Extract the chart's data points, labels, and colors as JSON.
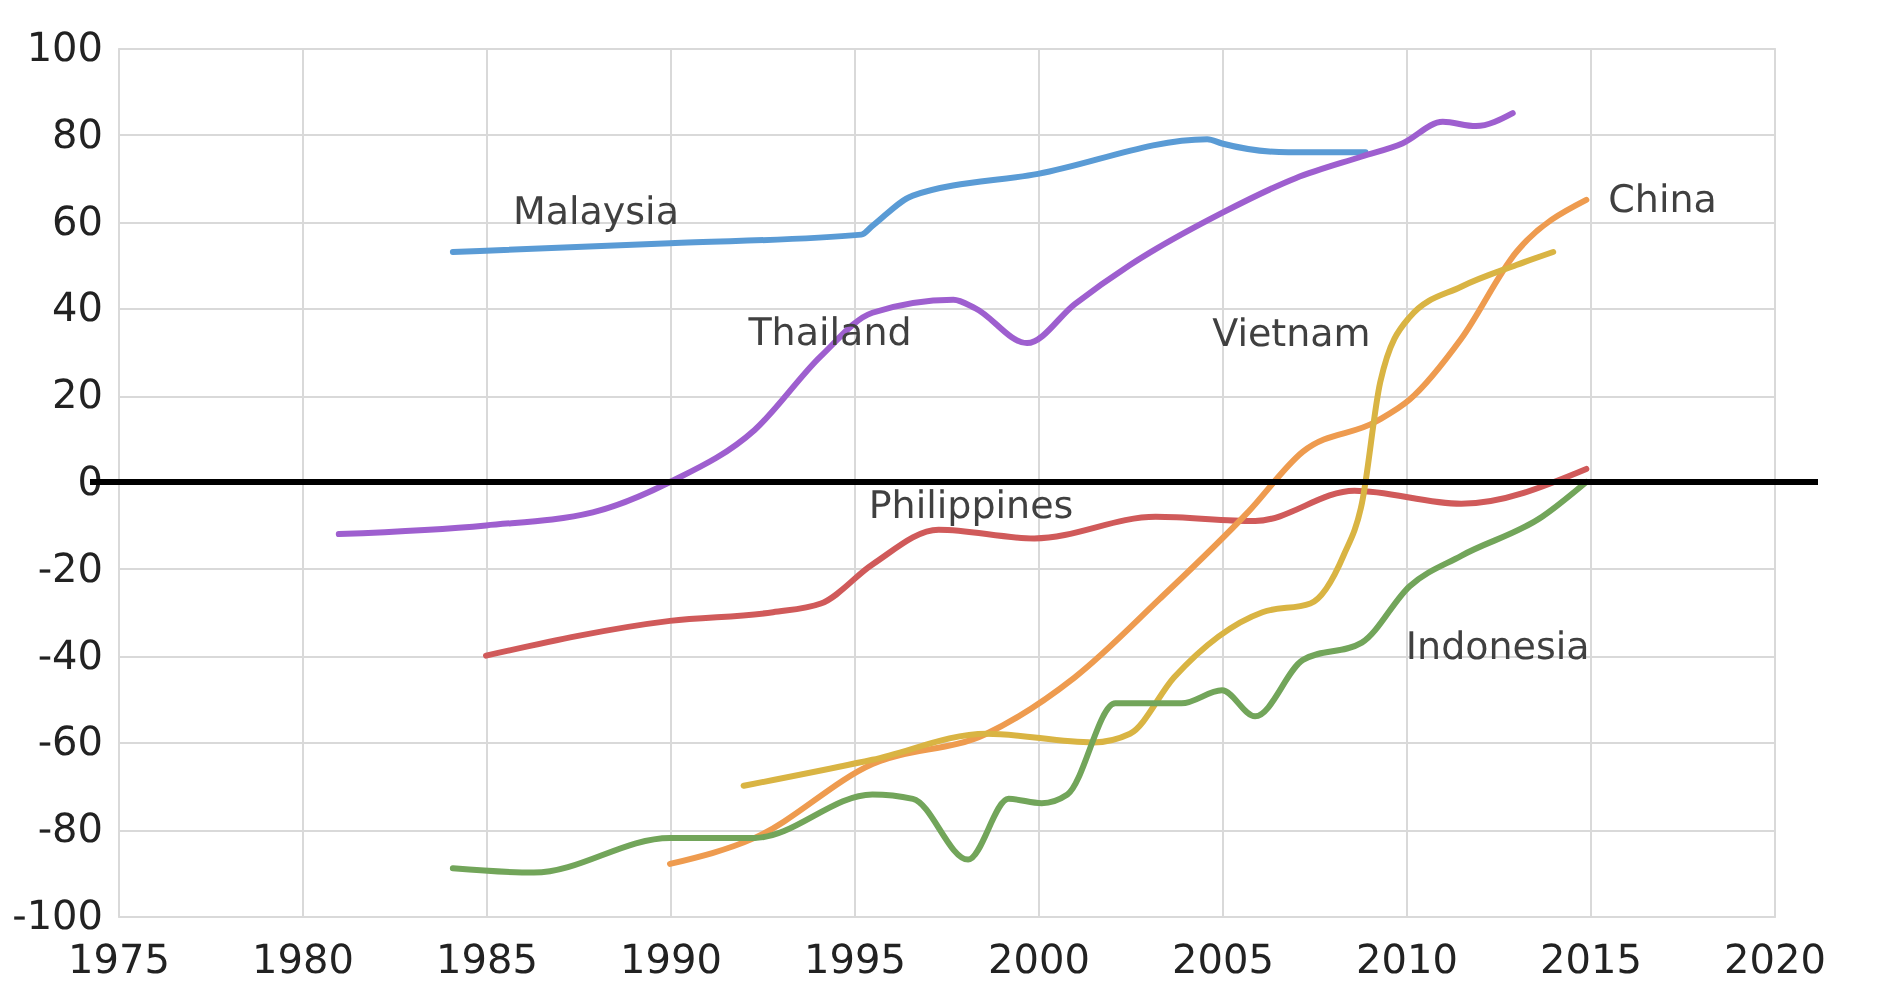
{
  "chart_data": {
    "type": "line",
    "xlim": [
      1975,
      2020
    ],
    "ylim": [
      -100,
      100
    ],
    "xticks": [
      1975,
      1980,
      1985,
      1990,
      1995,
      2000,
      2005,
      2010,
      2015,
      2020
    ],
    "yticks": [
      -100,
      -80,
      -60,
      -40,
      -20,
      0,
      20,
      40,
      60,
      80,
      100
    ],
    "grid": true,
    "legend": false,
    "marker": "none",
    "line_style": "solid",
    "ref_lines": [
      {
        "axis": "y",
        "value": 0,
        "color": "#000000"
      }
    ],
    "series": [
      {
        "name": "Malaysia",
        "color": "#5a9bd5",
        "x": [
          1984.1,
          1990,
          1995.2,
          1995.5,
          1996.6,
          2000,
          2004.6,
          2005,
          2006.8,
          2008.9
        ],
        "values": [
          53,
          55,
          57,
          59,
          66,
          71,
          79,
          78,
          76,
          76
        ]
      },
      {
        "name": "Thailand",
        "color": "#9e5fcf",
        "x": [
          1981,
          1985,
          1987.9,
          1990,
          1992.3,
          1994.1,
          1995.5,
          1997.7,
          1998.3,
          1999.7,
          2001,
          2002.5,
          2005,
          2007,
          2008.8,
          2009.9,
          2011,
          2011.9,
          2012.9
        ],
        "values": [
          -12,
          -10,
          -7,
          0,
          12,
          29,
          39,
          42,
          40,
          32,
          41,
          50,
          62,
          70,
          75,
          78,
          83,
          82,
          85
        ]
      },
      {
        "name": "Philippines",
        "color": "#d05a5a",
        "x": [
          1985,
          1990,
          1992.8,
          1994.1,
          1995.5,
          1997.3,
          1999.9,
          2003.2,
          2005.9,
          2008.6,
          2011.5,
          2014.9
        ],
        "values": [
          -40,
          -32,
          -30,
          -28,
          -19,
          -11,
          -13,
          -8,
          -9,
          -2,
          -5,
          3
        ]
      },
      {
        "name": "China",
        "color": "#ee9b4f",
        "x": [
          1990,
          1992.3,
          1995.5,
          1998.6,
          2001,
          2003.3,
          2005.7,
          2007.2,
          2009.2,
          2010.1,
          2011.5,
          2013,
          2014.9
        ],
        "values": [
          -88,
          -82,
          -65,
          -58,
          -45,
          -27,
          -7,
          7,
          14,
          19,
          33,
          53,
          65
        ]
      },
      {
        "name": "Vietnam",
        "color": "#d9b443",
        "x": [
          1992,
          1995.5,
          1998.6,
          2001.5,
          2002.5,
          2003.7,
          2006.1,
          2007.4,
          2008.3,
          2008.8,
          2009.3,
          2010.1,
          2011.5,
          2013,
          2014
        ],
        "values": [
          -70,
          -64,
          -58,
          -60,
          -58,
          -45,
          -30,
          -28,
          -17,
          -5,
          23,
          38,
          45,
          50,
          53
        ]
      },
      {
        "name": "Indonesia",
        "color": "#72a55a",
        "x": [
          1984.1,
          1986.3,
          1990,
          1992.3,
          1995.5,
          1996.6,
          1998.1,
          1999.2,
          2000.1,
          2000.8,
          2002.1,
          2003.9,
          2005,
          2005.9,
          2007.2,
          2008.8,
          2010.1,
          2011.5,
          2013.7,
          2014.9
        ],
        "values": [
          -89,
          -90,
          -82,
          -82,
          -72,
          -73,
          -87,
          -73,
          -74,
          -72,
          -51,
          -51,
          -48,
          -54,
          -41,
          -37,
          -24,
          -17,
          -8,
          0
        ]
      }
    ]
  }
}
